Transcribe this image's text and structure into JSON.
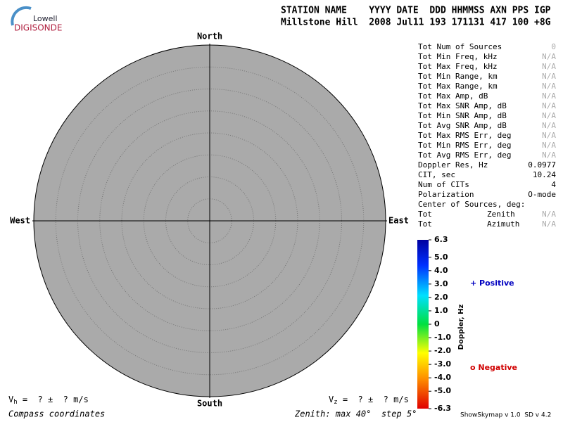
{
  "header": {
    "logo_top": "Lowell",
    "logo_bottom": "DIGISONDE",
    "columns_line": "STATION NAME    YYYY DATE  DDD HHMMSS AXN PPS IGP",
    "values_line": "Millstone Hill  2008 Jul11 193 171131 417 100 +8G"
  },
  "compass": {
    "north": "North",
    "south": "South",
    "east": "East",
    "west": "West"
  },
  "stats": {
    "rows": [
      [
        "Tot Num of Sources",
        "0"
      ],
      [
        "Tot Min Freq, kHz",
        "N/A"
      ],
      [
        "Tot Max Freq, kHz",
        "N/A"
      ],
      [
        "Tot Min Range, km",
        "N/A"
      ],
      [
        "Tot Max Range, km",
        "N/A"
      ],
      [
        "Tot Max Amp, dB",
        "N/A"
      ],
      [
        "Tot Max SNR Amp, dB",
        "N/A"
      ],
      [
        "Tot Min SNR Amp, dB",
        "N/A"
      ],
      [
        "Tot Avg SNR Amp, dB",
        "N/A"
      ],
      [
        "Tot Max RMS Err, deg",
        "N/A"
      ],
      [
        "Tot Min RMS Err, deg",
        "N/A"
      ],
      [
        "Tot Avg RMS Err, deg",
        "N/A"
      ],
      [
        "Doppler Res, Hz",
        "0.0977"
      ],
      [
        "CIT, sec",
        "10.24"
      ],
      [
        "Num of CITs",
        "4"
      ],
      [
        "Polarization",
        "O-mode"
      ]
    ]
  },
  "center": {
    "label": "Center of Sources, deg:",
    "rows": [
      [
        "Tot",
        "Zenith",
        "N/A"
      ],
      [
        "Tot",
        "Azimuth",
        "N/A"
      ]
    ]
  },
  "colorbar": {
    "title": "Doppler, Hz",
    "lim": [
      -6.3,
      6.3
    ],
    "ticks": [
      6.3,
      {
        "value": 5,
        "label": "5.0"
      },
      {
        "value": 4,
        "label": "4.0"
      },
      {
        "value": 3,
        "label": "3.0"
      },
      {
        "value": 2,
        "label": "2.0"
      },
      {
        "value": 1,
        "label": "1.0"
      },
      0,
      {
        "value": -1,
        "label": "-1.0"
      },
      {
        "value": -2,
        "label": "-2.0"
      },
      {
        "value": -3,
        "label": "-3.0"
      },
      {
        "value": -4,
        "label": "-4.0"
      },
      {
        "value": -5,
        "label": "-5.0"
      },
      -6.3
    ]
  },
  "legend": {
    "positive": "+ Positive",
    "negative": "o Negative"
  },
  "footer": {
    "vh_symbol": "V",
    "vh_sub": "h",
    "vh_text": " =  ? ±  ? m/s",
    "vz_symbol": "V",
    "vz_sub": "z",
    "vz_text": " =  ? ±  ? m/s",
    "compass_note": "Compass coordinates",
    "zenith_note": "Zenith: max 40°  step 5°",
    "version": "ShowSkymap v 1.0  SD v 4.2"
  }
}
